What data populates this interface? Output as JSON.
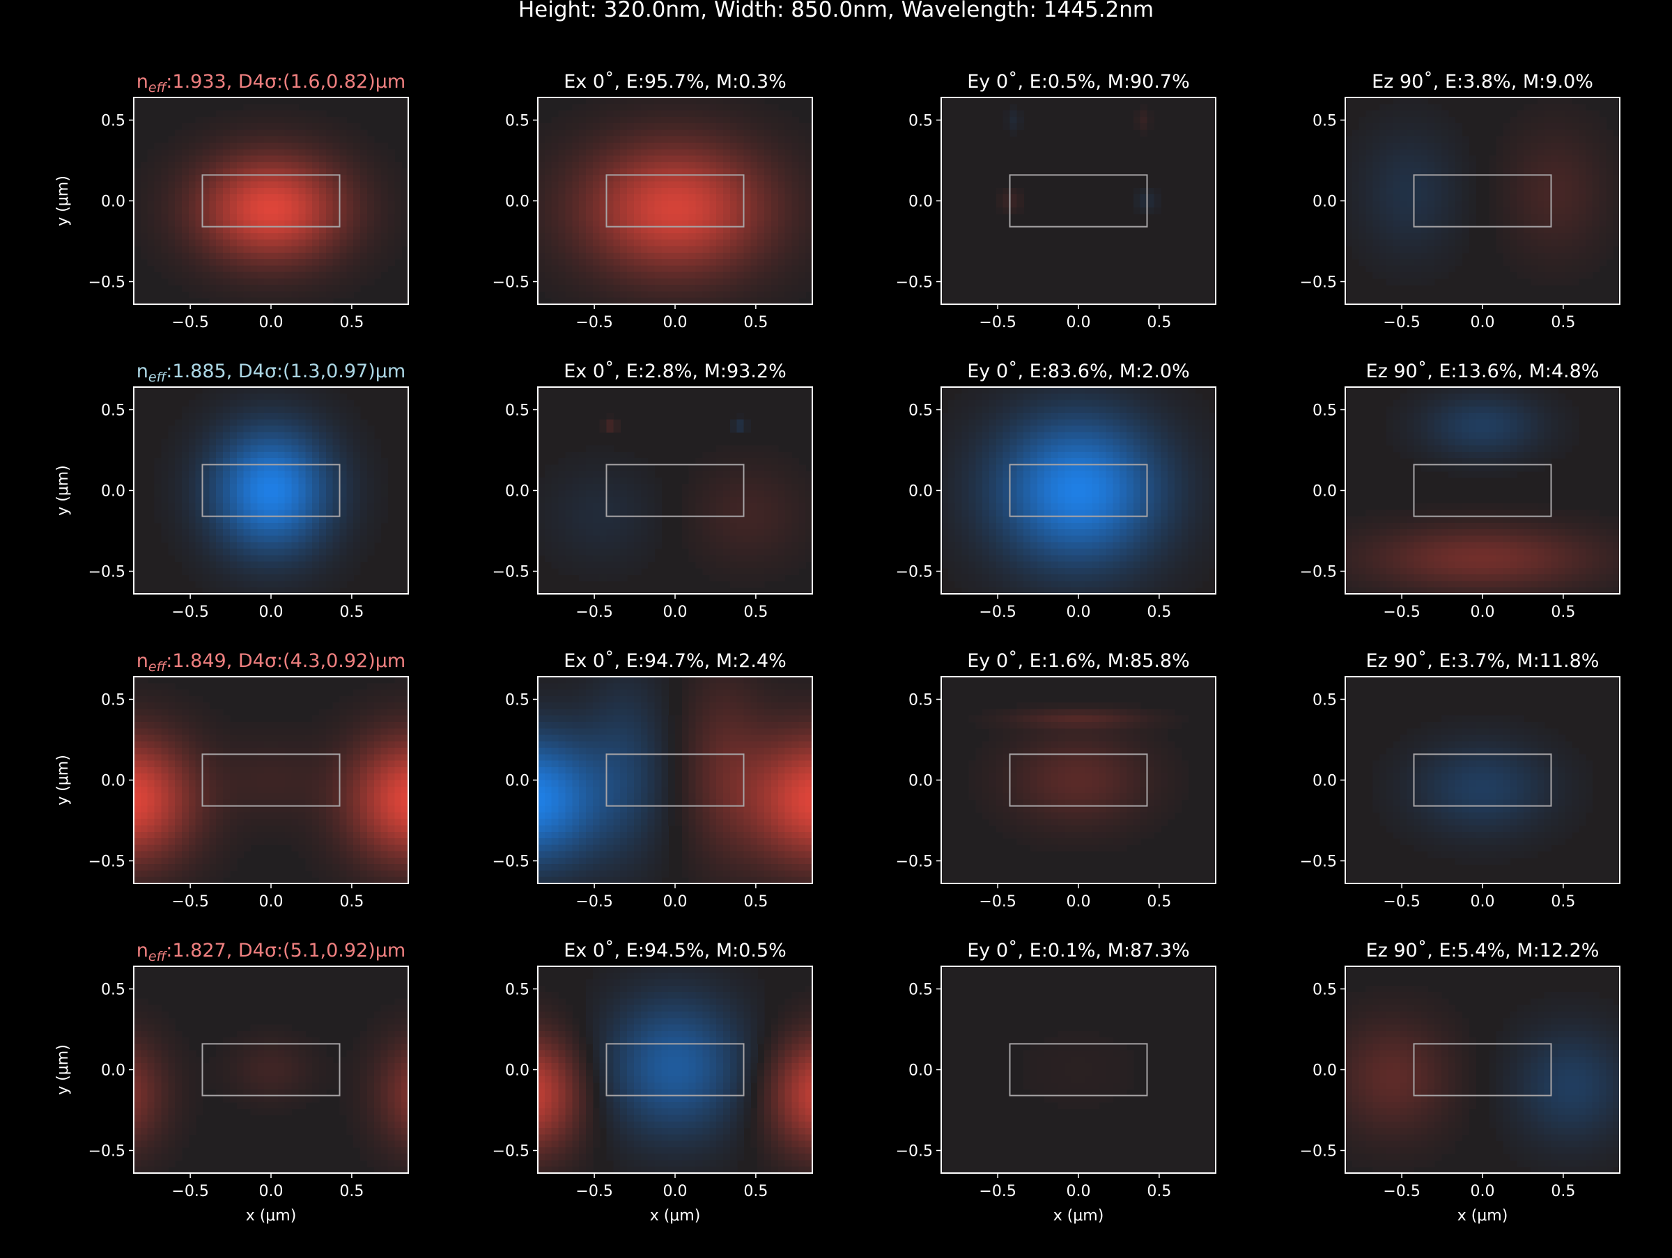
{
  "figure": {
    "suptitle": "Height: 320.0nm, Width: 850.0nm, Wavelength: 1445.2nm",
    "xlabel": "x (μm)",
    "ylabel": "y (μm)",
    "xticks": [
      "−0.5",
      "0.0",
      "0.5"
    ],
    "yticks": [
      "0.5",
      "0.0",
      "−0.5"
    ]
  },
  "chart_data": {
    "type": "heatmap",
    "xlim": [
      -0.85,
      0.85
    ],
    "ylim": [
      -0.64,
      0.64
    ],
    "xticks": [
      -0.5,
      0.0,
      0.5
    ],
    "yticks": [
      0.5,
      0.0,
      -0.5
    ],
    "waveguide_core": {
      "x": [
        -0.425,
        0.425
      ],
      "y": [
        -0.16,
        0.16
      ]
    },
    "colors": {
      "positive": "#e8473b",
      "negative": "#1f84ef",
      "background": "#221f21",
      "title_red": "#f08080",
      "title_blue": "#add8e6"
    },
    "rows": [
      {
        "mode_title": {
          "prefix": "n",
          "sub": "eff",
          "text": ":1.933, D4σ:(1.6,0.82)μm",
          "color": "#f08080"
        },
        "titles": [
          "Ex 0˚, E:95.7%, M:0.3%",
          "Ey 0˚, E:0.5%, M:90.7%",
          "Ez 90˚, E:3.8%, M:9.0%"
        ],
        "lobes": [
          [
            {
              "x": 0,
              "y": -0.05,
              "sx": 0.32,
              "sy": 0.23,
              "a": 0.95
            }
          ],
          [
            {
              "x": 0,
              "y": -0.05,
              "sx": 0.4,
              "sy": 0.28,
              "a": 0.9
            }
          ],
          [
            {
              "x": -0.42,
              "y": 0.0,
              "sx": 0.05,
              "sy": 0.05,
              "a": 0.12
            },
            {
              "x": 0.42,
              "y": 0.0,
              "sx": 0.05,
              "sy": 0.05,
              "a": -0.12
            },
            {
              "x": -0.4,
              "y": 0.5,
              "sx": 0.03,
              "sy": 0.05,
              "a": -0.1
            },
            {
              "x": 0.4,
              "y": 0.5,
              "sx": 0.03,
              "sy": 0.05,
              "a": 0.1
            }
          ],
          [
            {
              "x": -0.45,
              "y": 0.05,
              "sx": 0.22,
              "sy": 0.28,
              "a": -0.18
            },
            {
              "x": 0.45,
              "y": 0.05,
              "sx": 0.22,
              "sy": 0.28,
              "a": 0.18
            }
          ]
        ]
      },
      {
        "mode_title": {
          "prefix": "n",
          "sub": "eff",
          "text": ":1.885, D4σ:(1.3,0.97)μm",
          "color": "#add8e6"
        },
        "titles": [
          "Ex 0˚, E:2.8%, M:93.2%",
          "Ey 0˚, E:83.6%, M:2.0%",
          "Ez 90˚, E:13.6%, M:4.8%"
        ],
        "lobes": [
          [
            {
              "x": 0,
              "y": 0.0,
              "sx": 0.26,
              "sy": 0.27,
              "a": -0.95
            }
          ],
          [
            {
              "x": -0.45,
              "y": -0.15,
              "sx": 0.25,
              "sy": 0.22,
              "a": -0.12
            },
            {
              "x": 0.45,
              "y": -0.15,
              "sx": 0.25,
              "sy": 0.22,
              "a": 0.15
            },
            {
              "x": -0.4,
              "y": 0.4,
              "sx": 0.03,
              "sy": 0.03,
              "a": 0.2
            },
            {
              "x": 0.4,
              "y": 0.4,
              "sx": 0.03,
              "sy": 0.03,
              "a": -0.2
            }
          ],
          [
            {
              "x": 0,
              "y": 0.0,
              "sx": 0.36,
              "sy": 0.32,
              "a": -0.95
            }
          ],
          [
            {
              "x": 0,
              "y": 0.4,
              "sx": 0.26,
              "sy": 0.14,
              "a": -0.3
            },
            {
              "x": 0,
              "y": -0.42,
              "sx": 0.5,
              "sy": 0.14,
              "a": 0.4
            }
          ]
        ]
      },
      {
        "mode_title": {
          "prefix": "n",
          "sub": "eff",
          "text": ":1.849, D4σ:(4.3,0.92)μm",
          "color": "#f08080"
        },
        "titles": [
          "Ex 0˚, E:94.7%, M:2.4%",
          "Ey 0˚, E:1.6%, M:85.8%",
          "Ez 90˚, E:3.7%, M:11.8%"
        ],
        "lobes": [
          [
            {
              "x": -0.88,
              "y": -0.12,
              "sx": 0.28,
              "sy": 0.27,
              "a": 0.95
            },
            {
              "x": 0.88,
              "y": -0.12,
              "sx": 0.28,
              "sy": 0.27,
              "a": 0.95
            },
            {
              "x": 0,
              "y": 0.0,
              "sx": 0.22,
              "sy": 0.18,
              "a": 0.12
            }
          ],
          [
            {
              "x": -0.88,
              "y": -0.12,
              "sx": 0.3,
              "sy": 0.28,
              "a": -0.95
            },
            {
              "x": 0.88,
              "y": -0.12,
              "sx": 0.3,
              "sy": 0.28,
              "a": 0.95
            },
            {
              "x": -0.3,
              "y": 0.1,
              "sx": 0.18,
              "sy": 0.4,
              "a": -0.25
            },
            {
              "x": 0.3,
              "y": 0.1,
              "sx": 0.18,
              "sy": 0.4,
              "a": 0.25
            }
          ],
          [
            {
              "x": 0,
              "y": 0.0,
              "sx": 0.3,
              "sy": 0.2,
              "a": 0.28
            },
            {
              "x": 0,
              "y": 0.38,
              "sx": 0.3,
              "sy": 0.04,
              "a": 0.2
            }
          ],
          [
            {
              "x": 0,
              "y": -0.05,
              "sx": 0.3,
              "sy": 0.2,
              "a": -0.3
            }
          ]
        ]
      },
      {
        "mode_title": {
          "prefix": "n",
          "sub": "eff",
          "text": ":1.827, D4σ:(5.1,0.92)μm",
          "color": "#f08080"
        },
        "titles": [
          "Ex 0˚, E:94.5%, M:0.5%",
          "Ey 0˚, E:0.1%, M:87.3%",
          "Ez 90˚, E:5.4%, M:12.2%"
        ],
        "lobes": [
          [
            {
              "x": -0.95,
              "y": -0.15,
              "sx": 0.2,
              "sy": 0.24,
              "a": 0.5
            },
            {
              "x": 0.95,
              "y": -0.15,
              "sx": 0.2,
              "sy": 0.24,
              "a": 0.5
            },
            {
              "x": 0,
              "y": 0.0,
              "sx": 0.18,
              "sy": 0.14,
              "a": 0.15
            }
          ],
          [
            {
              "x": 0,
              "y": 0.02,
              "sx": 0.3,
              "sy": 0.3,
              "a": -0.6
            },
            {
              "x": -0.9,
              "y": -0.15,
              "sx": 0.22,
              "sy": 0.25,
              "a": 0.8
            },
            {
              "x": 0.9,
              "y": -0.15,
              "sx": 0.22,
              "sy": 0.25,
              "a": 0.8
            }
          ],
          [
            {
              "x": 0,
              "y": 0.0,
              "sx": 0.3,
              "sy": 0.2,
              "a": 0.04
            }
          ],
          [
            {
              "x": -0.55,
              "y": -0.05,
              "sx": 0.25,
              "sy": 0.25,
              "a": 0.3
            },
            {
              "x": 0.55,
              "y": -0.1,
              "sx": 0.25,
              "sy": 0.25,
              "a": -0.3
            }
          ]
        ]
      }
    ]
  }
}
